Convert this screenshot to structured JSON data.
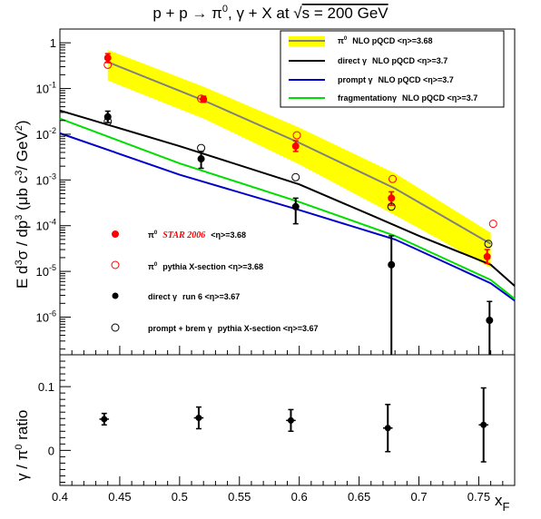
{
  "title_parts": {
    "p1": "p + p",
    "arrow": "→",
    "pi0": "π",
    "pi0_sup": "0",
    "rest": ", γ + X at  ",
    "sqrt": "√",
    "s_eq": "s = 200 GeV"
  },
  "upper_ylabel": {
    "E": "E d",
    "sup3a": "3",
    "sigma": "σ / dp",
    "sup3b": "3",
    "units": " (μb c",
    "sup3c": "3",
    "gev": "/ GeV",
    "sup2": "2",
    "close": ")"
  },
  "lower_ylabel": {
    "gamma": "γ / π",
    "sup0": "0",
    "ratio": " ratio"
  },
  "xlabel": {
    "x": "x",
    "sub": "F"
  },
  "x_ticks": [
    "0.4",
    "0.45",
    "0.5",
    "0.55",
    "0.6",
    "0.65",
    "0.7",
    "0.75"
  ],
  "upper_y_ticks": [
    {
      "base": "10",
      "exp": "-6",
      "value": 1e-06
    },
    {
      "base": "10",
      "exp": "-5",
      "value": 1e-05
    },
    {
      "base": "10",
      "exp": "-4",
      "value": 0.0001
    },
    {
      "base": "10",
      "exp": "-3",
      "value": 0.001
    },
    {
      "base": "10",
      "exp": "-2",
      "value": 0.01
    },
    {
      "base": "10",
      "exp": "-1",
      "value": 0.1
    },
    {
      "base": "1",
      "exp": "",
      "value": 1
    }
  ],
  "lower_y_ticks": [
    "0",
    "0.1"
  ],
  "legend_top": [
    {
      "sym": "π",
      "sup": "0",
      "text": "NLO pQCD  <η>=3.68",
      "color": "#808080",
      "band": "#ffff00"
    },
    {
      "sym": "direct γ",
      "sup": "",
      "text": "NLO pQCD  <η>=3.7",
      "color": "#000000",
      "band": ""
    },
    {
      "sym": "prompt γ",
      "sup": "",
      "text": "NLO pQCD  <η>=3.7",
      "color": "#0000cc",
      "band": ""
    },
    {
      "sym": "fragmentationγ",
      "sup": "",
      "text": "NLO pQCD  <η>=3.7",
      "color": "#00dd00",
      "band": ""
    }
  ],
  "legend_bottom": [
    {
      "sym": "π",
      "sup": "0",
      "star": "STAR 2006",
      "text": "<η>=3.68",
      "marker": "filled-red"
    },
    {
      "sym": "π",
      "sup": "0",
      "star": "",
      "text": "pythia X-section  <η>=3.68",
      "marker": "open-red"
    },
    {
      "sym": "direct γ",
      "sup": "",
      "star": "",
      "text": "run 6 <η>=3.67",
      "marker": "filled-black"
    },
    {
      "sym": "prompt + brem γ",
      "sup": "",
      "star": "",
      "text": "pythia X-section  <η>=3.67",
      "marker": "open-black"
    }
  ],
  "chart_data": [
    {
      "type": "scatter",
      "panel": "upper",
      "yscale": "log",
      "xlim": [
        0.4,
        0.78
      ],
      "ylim": [
        1.5e-07,
        2
      ],
      "xlabel": "xF",
      "ylabel": "E d3σ/dp3 (μb c3/GeV2)",
      "lines": [
        {
          "name": "π0 NLO pQCD <η>=3.68",
          "color": "#808080",
          "x": [
            0.44,
            0.52,
            0.6,
            0.68,
            0.76
          ],
          "y": [
            0.38,
            0.055,
            0.0065,
            0.00065,
            4e-05
          ]
        },
        {
          "name": "direct γ NLO pQCD <η>=3.7",
          "color": "#000000",
          "x": [
            0.4,
            0.5,
            0.6,
            0.66,
            0.7,
            0.76,
            0.78
          ],
          "y": [
            0.033,
            0.0055,
            0.0008,
            0.00017,
            6e-05,
            1.4e-05,
            4.8e-06
          ]
        },
        {
          "name": "prompt γ NLO pQCD <η>=3.7",
          "color": "#0000cc",
          "x": [
            0.4,
            0.5,
            0.6,
            0.68,
            0.76,
            0.78
          ],
          "y": [
            0.0105,
            0.0013,
            0.00022,
            5e-05,
            5.5e-06,
            2.3e-06
          ]
        },
        {
          "name": "fragmentationγ NLO pQCD <η>=3.7",
          "color": "#00dd00",
          "x": [
            0.4,
            0.5,
            0.6,
            0.68,
            0.76,
            0.78
          ],
          "y": [
            0.022,
            0.0023,
            0.00033,
            6e-05,
            6.5e-06,
            2.5e-06
          ]
        }
      ],
      "band": {
        "name": "π0 NLO pQCD band",
        "color": "#ffff00",
        "x": [
          0.44,
          0.52,
          0.6,
          0.68,
          0.76
        ],
        "y_low": [
          0.15,
          0.022,
          0.0022,
          0.00017,
          1.2e-05
        ],
        "y_high": [
          0.7,
          0.11,
          0.014,
          0.0014,
          7e-05
        ]
      },
      "points": [
        {
          "name": "π0 STAR 2006 <η>=3.68",
          "marker": "filled-red",
          "x": [
            0.44,
            0.52,
            0.597,
            0.677,
            0.757
          ],
          "y": [
            0.47,
            0.058,
            0.0055,
            0.0004,
            2.1e-05
          ],
          "y_err_low": [
            0.37,
            0.05,
            0.0042,
            0.00028,
            1.5e-05
          ],
          "y_err_high": [
            0.58,
            0.068,
            0.0072,
            0.00055,
            3e-05
          ]
        },
        {
          "name": "π0 pythia X-section <η>=3.68",
          "marker": "open-red",
          "x": [
            0.44,
            0.518,
            0.598,
            0.678,
            0.762
          ],
          "y": [
            0.33,
            0.06,
            0.0095,
            0.00105,
            0.00011
          ]
        },
        {
          "name": "direct γ run 6 <η>=3.67",
          "marker": "filled-black",
          "x": [
            0.44,
            0.518,
            0.597,
            0.677,
            0.759
          ],
          "y": [
            0.024,
            0.0029,
            0.00026,
            1.4e-05,
            8.5e-07
          ],
          "y_err_low": [
            0.018,
            0.0018,
            0.00011,
            1.5e-07,
            1.5e-07
          ],
          "y_err_high": [
            0.032,
            0.0042,
            0.0004,
            6e-05,
            2.2e-06
          ]
        },
        {
          "name": "prompt + brem γ pythia X-section <η>=3.67",
          "marker": "open-black",
          "x": [
            0.44,
            0.518,
            0.597,
            0.677,
            0.758
          ],
          "y": [
            0.019,
            0.005,
            0.00115,
            0.00026,
            4e-05
          ]
        }
      ]
    },
    {
      "type": "scatter",
      "panel": "lower",
      "xlim": [
        0.4,
        0.78
      ],
      "ylim": [
        -0.055,
        0.15
      ],
      "xlabel": "xF",
      "ylabel": "γ/π0 ratio",
      "points": [
        {
          "name": "ratio",
          "marker": "filled-black",
          "x": [
            0.437,
            0.516,
            0.593,
            0.674,
            0.754
          ],
          "y": [
            0.049,
            0.051,
            0.047,
            0.035,
            0.04
          ],
          "y_err": [
            0.009,
            0.017,
            0.017,
            0.037,
            0.058
          ],
          "x_err": [
            0.004,
            0.004,
            0.004,
            0.004,
            0.004
          ]
        }
      ]
    }
  ]
}
